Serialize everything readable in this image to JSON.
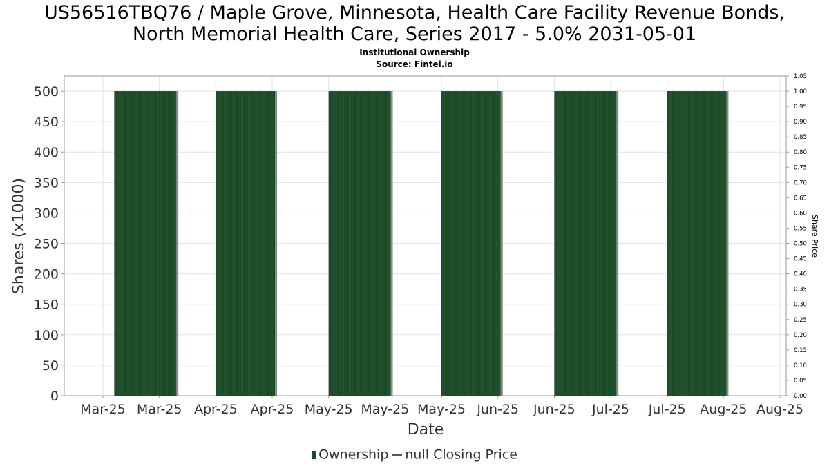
{
  "chart_data": {
    "type": "bar",
    "title_lines": [
      "US56516TBQ76 / Maple Grove, Minnesota, Health Care Facility Revenue Bonds,",
      "North Memorial Health Care, Series 2017 - 5.0% 2031-05-01"
    ],
    "subtitle_lines": [
      "Institutional Ownership",
      "Source: Fintel.io"
    ],
    "xlabel": "Date",
    "ylabel": "Shares (x1000)",
    "y2label": "Share Price",
    "x_tick_labels": [
      "Mar-25",
      "Mar-25",
      "Apr-25",
      "Apr-25",
      "May-25",
      "May-25",
      "May-25",
      "Jun-25",
      "Jun-25",
      "Jul-25",
      "Jul-25",
      "Aug-25",
      "Aug-25"
    ],
    "ylim": [
      0,
      525
    ],
    "y_ticks": [
      0,
      50,
      100,
      150,
      200,
      250,
      300,
      350,
      400,
      450,
      500
    ],
    "y2lim": [
      0,
      1.05
    ],
    "y2_ticks": [
      "0.00",
      "0.05",
      "0.10",
      "0.15",
      "0.20",
      "0.25",
      "0.30",
      "0.35",
      "0.40",
      "0.45",
      "0.50",
      "0.55",
      "0.60",
      "0.65",
      "0.70",
      "0.75",
      "0.80",
      "0.85",
      "0.90",
      "0.95",
      "1.00",
      "1.05"
    ],
    "grid": true,
    "legend_placement": "bottom",
    "series": [
      {
        "name": "Ownership",
        "color": "#1b4a26",
        "bars": [
          {
            "start_tick": 0.2,
            "end_tick": 1.3,
            "value": 500
          },
          {
            "start_tick": 2.0,
            "end_tick": 3.05,
            "value": 500
          },
          {
            "start_tick": 4.0,
            "end_tick": 5.1,
            "value": 500
          },
          {
            "start_tick": 6.0,
            "end_tick": 7.05,
            "value": 500
          },
          {
            "start_tick": 8.0,
            "end_tick": 9.1,
            "value": 500
          },
          {
            "start_tick": 10.0,
            "end_tick": 11.05,
            "value": 500
          }
        ]
      },
      {
        "name": "null Closing Price",
        "color": "#555555",
        "values": []
      }
    ],
    "legend": {
      "ownership_label": "Ownership",
      "price_label": "null Closing Price"
    }
  }
}
